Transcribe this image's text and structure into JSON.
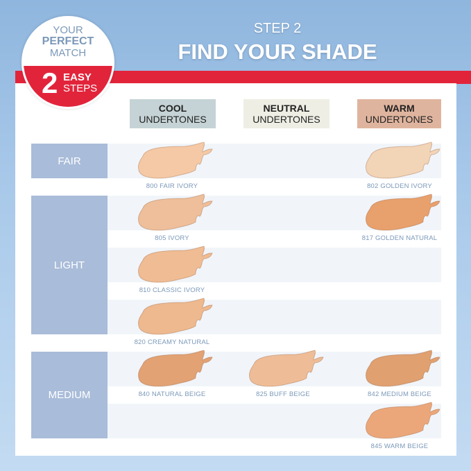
{
  "badge": {
    "line1": "YOUR",
    "line2": "PERFECT",
    "line3": "MATCH",
    "number": "2",
    "line4": "EASY",
    "line5": "STEPS"
  },
  "title": {
    "step": "STEP 2",
    "heading": "FIND YOUR SHADE"
  },
  "columns": [
    {
      "bold": "COOL",
      "sub": "UNDERTONES",
      "color": "#c5d3d6"
    },
    {
      "bold": "NEUTRAL",
      "sub": "UNDERTONES",
      "color": "#eeeee4"
    },
    {
      "bold": "WARM",
      "sub": "UNDERTONES",
      "color": "#dfb49e"
    }
  ],
  "rows": [
    {
      "label": "FAIR"
    },
    {
      "label": "LIGHT"
    },
    {
      "label": "MEDIUM"
    }
  ],
  "shades": [
    {
      "name": "800 FAIR IVORY",
      "col": 0,
      "line": 0,
      "color": "#f5c9a5"
    },
    {
      "name": "802 GOLDEN IVORY",
      "col": 2,
      "line": 0,
      "color": "#f2d4b6"
    },
    {
      "name": "805 IVORY",
      "col": 0,
      "line": 1,
      "color": "#eebf9a"
    },
    {
      "name": "817 GOLDEN NATURAL",
      "col": 2,
      "line": 1,
      "color": "#e8a06c"
    },
    {
      "name": "810 CLASSIC IVORY",
      "col": 0,
      "line": 2,
      "color": "#f0bc93"
    },
    {
      "name": "820 CREAMY NATURAL",
      "col": 0,
      "line": 3,
      "color": "#eeb98e"
    },
    {
      "name": "840 NATURAL BEIGE",
      "col": 0,
      "line": 4,
      "color": "#e2a274"
    },
    {
      "name": "825 BUFF BEIGE",
      "col": 1,
      "line": 4,
      "color": "#eebd97"
    },
    {
      "name": "842 MEDIUM BEIGE",
      "col": 2,
      "line": 4,
      "color": "#e0a070"
    },
    {
      "name": "845 WARM BEIGE",
      "col": 2,
      "line": 5,
      "color": "#eba77a"
    }
  ]
}
